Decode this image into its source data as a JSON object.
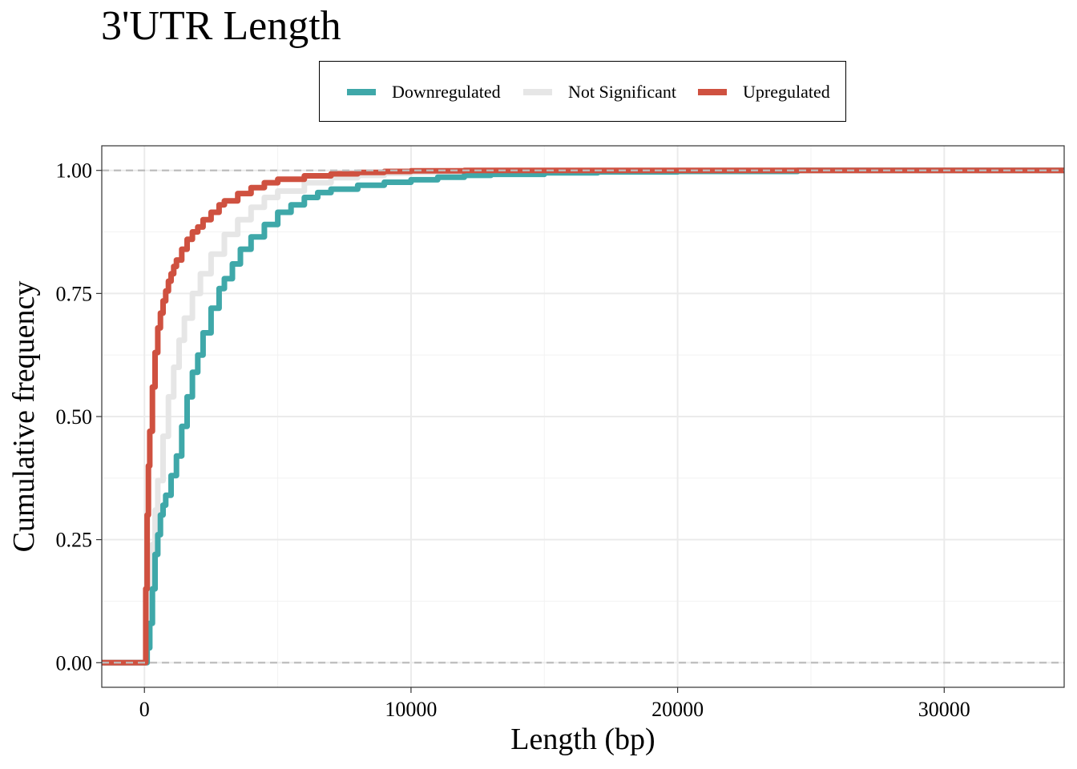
{
  "chart_data": {
    "type": "line",
    "subtype": "ecdf",
    "title": "3'UTR Length",
    "xlabel": "Length (bp)",
    "ylabel": "Cumulative frequency",
    "xlim": [
      -1600,
      34500
    ],
    "ylim": [
      -0.05,
      1.05
    ],
    "x_ticks": [
      0,
      10000,
      20000,
      30000
    ],
    "x_tick_labels": [
      "0",
      "10000",
      "20000",
      "30000"
    ],
    "y_ticks": [
      0.0,
      0.25,
      0.5,
      0.75,
      1.0
    ],
    "y_tick_labels": [
      "0.00",
      "0.25",
      "0.50",
      "0.75",
      "1.00"
    ],
    "grid": true,
    "reference_lines": [
      0,
      1
    ],
    "legend_position": "top",
    "series": [
      {
        "name": "Not Significant",
        "color": "#e6e6e6",
        "x": [
          -1600,
          0,
          100,
          200,
          300,
          400,
          500,
          700,
          900,
          1100,
          1300,
          1500,
          1800,
          2100,
          2500,
          3000,
          3500,
          4000,
          4500,
          5000,
          6000,
          7000,
          8000,
          9000,
          10000,
          12000,
          15000,
          20000,
          30000,
          34500
        ],
        "y": [
          0,
          0,
          0.07,
          0.15,
          0.24,
          0.31,
          0.37,
          0.46,
          0.54,
          0.6,
          0.655,
          0.7,
          0.75,
          0.79,
          0.83,
          0.87,
          0.9,
          0.925,
          0.945,
          0.958,
          0.975,
          0.985,
          0.99,
          0.994,
          0.996,
          0.998,
          0.999,
          1,
          1,
          1
        ]
      },
      {
        "name": "Downregulated",
        "color": "#3fa8a9",
        "x": [
          -1600,
          0,
          100,
          200,
          300,
          400,
          500,
          600,
          700,
          800,
          1000,
          1200,
          1400,
          1600,
          1800,
          2000,
          2200,
          2500,
          2800,
          3000,
          3300,
          3600,
          4000,
          4500,
          5000,
          5500,
          6000,
          6500,
          7000,
          8000,
          9000,
          10000,
          11000,
          12000,
          13000,
          15000,
          17000,
          20000,
          24500,
          34500
        ],
        "y": [
          0,
          0,
          0.03,
          0.08,
          0.15,
          0.22,
          0.26,
          0.3,
          0.32,
          0.34,
          0.38,
          0.42,
          0.48,
          0.54,
          0.59,
          0.625,
          0.67,
          0.72,
          0.76,
          0.78,
          0.81,
          0.84,
          0.865,
          0.89,
          0.915,
          0.93,
          0.945,
          0.955,
          0.962,
          0.97,
          0.976,
          0.981,
          0.986,
          0.99,
          0.992,
          0.995,
          0.997,
          0.998,
          1,
          1
        ]
      },
      {
        "name": "Upregulated",
        "color": "#cf5140",
        "x": [
          -1600,
          0,
          50,
          100,
          150,
          200,
          300,
          400,
          500,
          600,
          700,
          800,
          900,
          1000,
          1100,
          1200,
          1400,
          1600,
          1800,
          2000,
          2200,
          2500,
          2800,
          3000,
          3500,
          4000,
          4500,
          5000,
          6000,
          7000,
          8000,
          9000,
          10000,
          12000,
          14000,
          17000,
          20000,
          34500
        ],
        "y": [
          0,
          0,
          0.15,
          0.3,
          0.4,
          0.47,
          0.56,
          0.63,
          0.68,
          0.71,
          0.735,
          0.755,
          0.775,
          0.79,
          0.805,
          0.818,
          0.84,
          0.86,
          0.875,
          0.885,
          0.9,
          0.915,
          0.93,
          0.938,
          0.953,
          0.965,
          0.975,
          0.982,
          0.989,
          0.993,
          0.996,
          0.998,
          0.999,
          1,
          1,
          1,
          1,
          1
        ]
      }
    ],
    "legend_order": [
      "Downregulated",
      "Not Significant",
      "Upregulated"
    ]
  }
}
